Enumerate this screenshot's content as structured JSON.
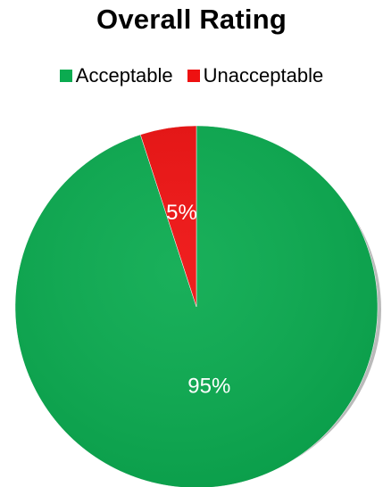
{
  "colors": {
    "acceptable": "#0bab50",
    "unacceptable": "#ee1111"
  },
  "chart_data": {
    "type": "pie",
    "title": "Overall Rating",
    "categories": [
      "Acceptable",
      "Unacceptable"
    ],
    "values": [
      95,
      5
    ],
    "data_labels": [
      "95%",
      "5%"
    ],
    "legend_position": "top"
  }
}
